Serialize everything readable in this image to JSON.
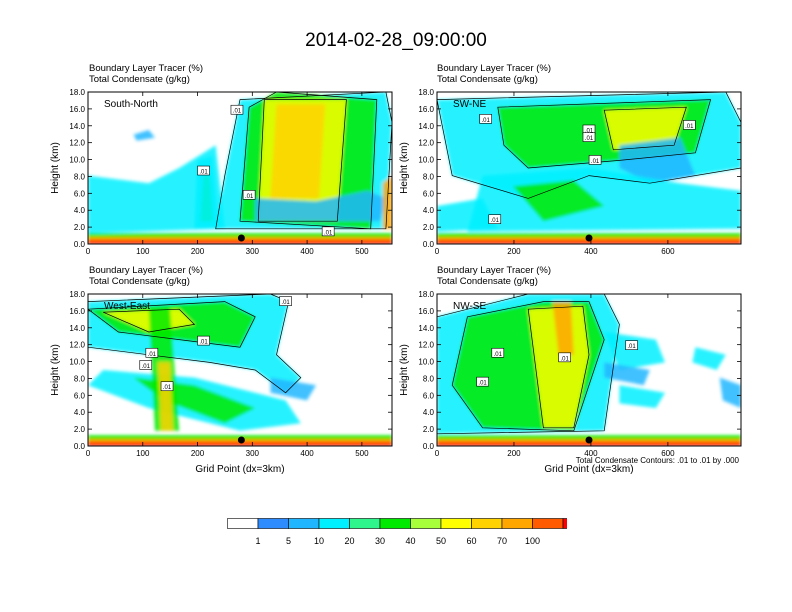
{
  "page": {
    "title": "2014-02-28_09:00:00"
  },
  "colors": {
    "levels": [
      "#ffffff",
      "#2f8cff",
      "#1fb6ff",
      "#00f0ff",
      "#2ef58c",
      "#00ea00",
      "#a6ff3a",
      "#ffff00",
      "#ffd200",
      "#ffa600",
      "#ff5a00",
      "#ff0000"
    ],
    "contour": "#000000"
  },
  "colorbar": {
    "labels": [
      "1",
      "5",
      "10",
      "20",
      "30",
      "40",
      "50",
      "60",
      "70",
      "100"
    ]
  },
  "footnote": "Total Condensate Contours: .01 to .01 by .000",
  "chart_data": [
    {
      "type": "heatmap",
      "title_line1": "Boundary Layer Tracer   (%)",
      "title_line2": "Total Condensate   (g/kg)",
      "inset_label": "South-North",
      "ylabel": "Height (km)",
      "xlabel": "",
      "xlim": [
        0,
        555
      ],
      "ylim": [
        0,
        18
      ],
      "xticks": [
        "0",
        "100",
        "200",
        "300",
        "400",
        "500"
      ],
      "yticks": [
        "0.0",
        "2.0",
        "4.0",
        "6.0",
        "8.0",
        "10.0",
        "12.0",
        "14.0",
        "16.0",
        "18.0"
      ],
      "contour_labels": [
        ".01",
        ".01",
        ".01",
        ".01"
      ],
      "marker_x": 280
    },
    {
      "type": "heatmap",
      "title_line1": "Boundary Layer Tracer   (%)",
      "title_line2": "Total Condensate   (g/kg)",
      "inset_label": "SW-NE",
      "ylabel": "Height (km)",
      "xlabel": "",
      "xlim": [
        0,
        790
      ],
      "ylim": [
        0,
        18
      ],
      "xticks": [
        "0",
        "200",
        "400",
        "600"
      ],
      "yticks": [
        "0.0",
        "2.0",
        "4.0",
        "6.0",
        "8.0",
        "10.0",
        "12.0",
        "14.0",
        "16.0",
        "18.0"
      ],
      "contour_labels": [
        ".01",
        ".01",
        ".01",
        ".01",
        ".01",
        ".01"
      ],
      "marker_x": 395
    },
    {
      "type": "heatmap",
      "title_line1": "Boundary Layer Tracer   (%)",
      "title_line2": "Total Condensate   (g/kg)",
      "inset_label": "West-East",
      "ylabel": "Height (km)",
      "xlabel": "Grid Point (dx=3km)",
      "xlim": [
        0,
        555
      ],
      "ylim": [
        0,
        18
      ],
      "xticks": [
        "0",
        "100",
        "200",
        "300",
        "400",
        "500"
      ],
      "yticks": [
        "0.0",
        "2.0",
        "4.0",
        "6.0",
        "8.0",
        "10.0",
        "12.0",
        "14.0",
        "16.0",
        "18.0"
      ],
      "contour_labels": [
        ".01",
        ".01",
        ".01",
        ".01",
        ".01"
      ],
      "marker_x": 280
    },
    {
      "type": "heatmap",
      "title_line1": "Boundary Layer Tracer   (%)",
      "title_line2": "Total Condensate   (g/kg)",
      "inset_label": "NW-SE",
      "ylabel": "Height (km)",
      "xlabel": "Grid Point (dx=3km)",
      "xlim": [
        0,
        790
      ],
      "ylim": [
        0,
        18
      ],
      "xticks": [
        "0",
        "200",
        "400",
        "600"
      ],
      "yticks": [
        "0.0",
        "2.0",
        "4.0",
        "6.0",
        "8.0",
        "10.0",
        "12.0",
        "14.0",
        "16.0",
        "18.0"
      ],
      "contour_labels": [
        ".01",
        ".01",
        ".01",
        ".01"
      ],
      "marker_x": 395
    }
  ]
}
